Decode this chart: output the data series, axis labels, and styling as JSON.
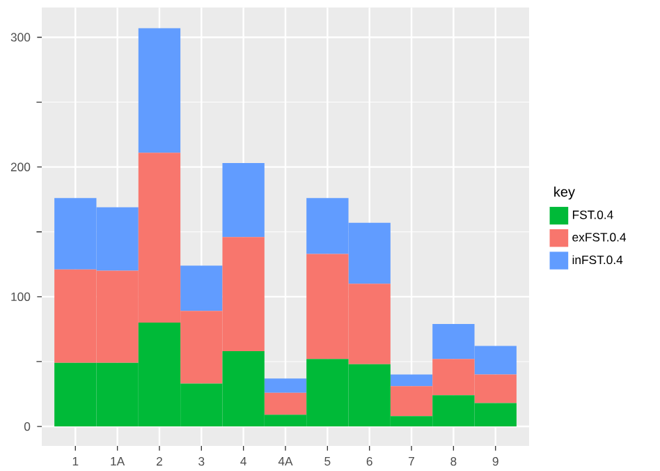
{
  "chart_data": {
    "type": "bar",
    "stacked": true,
    "legend_title": "key",
    "categories": [
      "1",
      "1A",
      "2",
      "3",
      "4",
      "4A",
      "5",
      "6",
      "7",
      "8",
      "9"
    ],
    "series": [
      {
        "name": "FST.0.4",
        "color": "#00BA38",
        "values": [
          49,
          49,
          80,
          33,
          58,
          9,
          52,
          48,
          8,
          24,
          18
        ]
      },
      {
        "name": "exFST.0.4",
        "color": "#F8766D",
        "values": [
          72,
          71,
          131,
          56,
          88,
          17,
          81,
          62,
          23,
          28,
          22
        ]
      },
      {
        "name": "inFST.0.4",
        "color": "#619CFF",
        "values": [
          55,
          49,
          96,
          35,
          57,
          11,
          43,
          47,
          9,
          27,
          22
        ]
      }
    ],
    "ylim": [
      -15,
      323
    ],
    "yticks": [
      0,
      100,
      200,
      300
    ],
    "grid": true,
    "legend": "right"
  }
}
